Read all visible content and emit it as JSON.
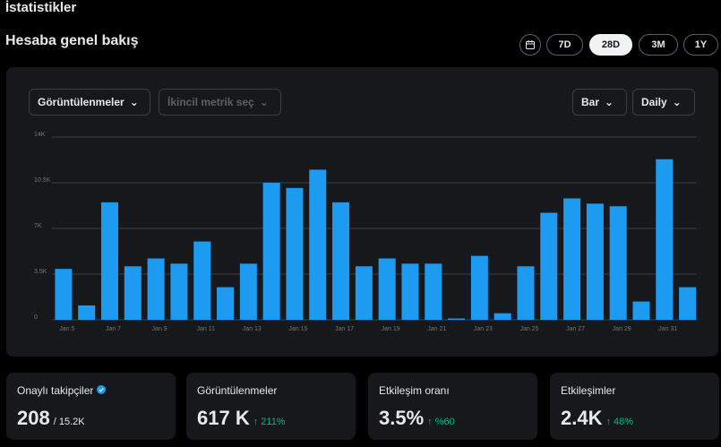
{
  "header": {
    "title": "İstatistikler",
    "section": "Hesaba genel bakış"
  },
  "range_buttons": [
    "7D",
    "28D",
    "3M",
    "1Y"
  ],
  "controls": {
    "metric": "Görüntülenmeler",
    "secondary": "İkincil metrik seç",
    "chart_type": "Bar",
    "interval": "Daily"
  },
  "chart_data": {
    "type": "bar",
    "color": "#1d9bf0",
    "grid": true,
    "categories": [
      "Jan 5",
      null,
      "Jan 7",
      null,
      "Jan 9",
      null,
      "Jan 11",
      null,
      "Jan 13",
      null,
      "Jan 15",
      null,
      "Jan 17",
      null,
      "Jan 19",
      null,
      "Jan 21",
      null,
      "Jan 23",
      null,
      "Jan 25",
      null,
      "Jan 27",
      null,
      "Jan 29",
      null,
      "Jan 31",
      null
    ],
    "values": [
      3900,
      1100,
      9000,
      4100,
      4700,
      4300,
      6000,
      2500,
      4300,
      10500,
      10100,
      11500,
      9000,
      4100,
      4700,
      4300,
      4300,
      100,
      4900,
      500,
      4100,
      8200,
      9300,
      8900,
      8700,
      1400,
      12300,
      2500
    ],
    "ylim": [
      0,
      14000
    ],
    "yticks": [
      0,
      {
        "value": 3500,
        "label": "3.5K"
      },
      {
        "value": 7000,
        "label": "7K"
      },
      {
        "value": 10500,
        "label": "10.5K"
      },
      {
        "value": 14000,
        "label": "14K"
      }
    ]
  },
  "stats": [
    {
      "label": "Onaylı takipçiler",
      "value": "208",
      "extra": "/ 15.2K"
    },
    {
      "label": "Görüntülenmeler",
      "value": "617 K",
      "extra": "↑ 211%"
    },
    {
      "label": "Etkileşim oranı",
      "value": "3.5%",
      "extra": "↑ %60"
    },
    {
      "label": "Etkileşimler",
      "value": "2.4K",
      "extra": "↑ 48%"
    }
  ]
}
